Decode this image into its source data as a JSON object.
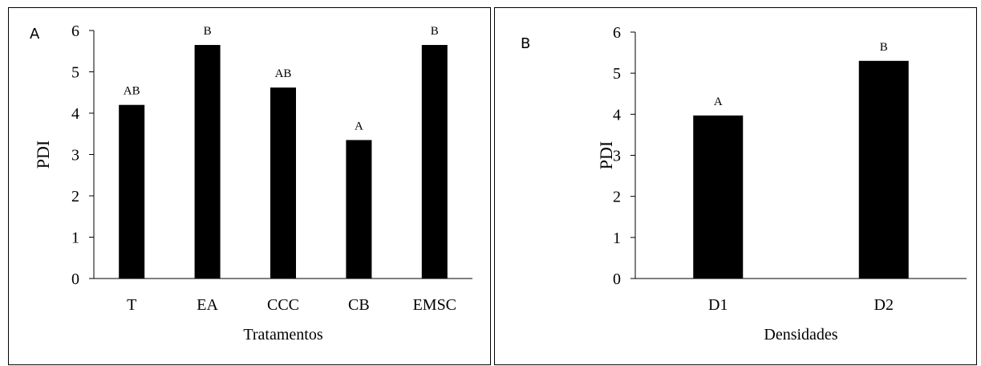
{
  "chart_data": [
    {
      "type": "bar",
      "panel_label": "A",
      "categories": [
        "T",
        "EA",
        "CCC",
        "CB",
        "EMSC"
      ],
      "values": [
        4.2,
        5.65,
        4.62,
        3.35,
        5.65
      ],
      "letters": [
        "AB",
        "B",
        "AB",
        "A",
        "B"
      ],
      "xlabel": "Tratamentos",
      "ylabel": "PDI",
      "ylim": [
        0,
        6
      ],
      "yticks": [
        0,
        1,
        2,
        3,
        4,
        5,
        6
      ],
      "bar_color": "#000000",
      "grid": false
    },
    {
      "type": "bar",
      "panel_label": "B",
      "categories": [
        "D1",
        "D2"
      ],
      "values": [
        3.97,
        5.3
      ],
      "letters": [
        "A",
        "B"
      ],
      "xlabel": "Densidades",
      "ylabel": "PDI",
      "ylim": [
        0,
        6
      ],
      "yticks": [
        0,
        1,
        2,
        3,
        4,
        5,
        6
      ],
      "bar_color": "#000000",
      "grid": false
    }
  ]
}
